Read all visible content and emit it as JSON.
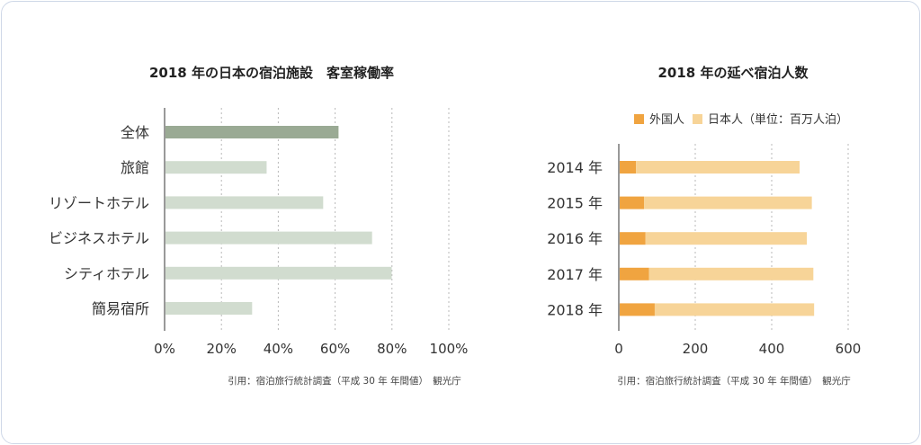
{
  "chart_data": [
    {
      "type": "bar",
      "orientation": "horizontal",
      "title": "2018 年の日本の宿泊施設　客室稼働率",
      "categories": [
        "全体",
        "旅館",
        "リゾートホテル",
        "ビジネスホテル",
        "シティホテル",
        "簡易宿所"
      ],
      "values": [
        61.2,
        35.9,
        55.8,
        73.0,
        79.9,
        30.8
      ],
      "highlight_index": 0,
      "xlim": [
        0,
        100
      ],
      "xticks": [
        "0%",
        "20%",
        "40%",
        "60%",
        "80%",
        "100%"
      ],
      "xtick_values": [
        0,
        20,
        40,
        60,
        80,
        100
      ],
      "grid": true,
      "colors": {
        "highlight": "#9aaa94",
        "bar": "#d1dccf",
        "grid": "#b8b8b8"
      },
      "source": "引用：宿泊旅行統計調査（平成 30 年 年間値）　観光庁"
    },
    {
      "type": "bar",
      "orientation": "horizontal",
      "stacked": true,
      "title": "2018 年の延べ宿泊人数",
      "categories": [
        "2014 年",
        "2015 年",
        "2016 年",
        "2017 年",
        "2018 年"
      ],
      "series": [
        {
          "name": "外国人",
          "values": [
            45,
            66,
            70,
            79,
            94
          ],
          "color": "#f0a440"
        },
        {
          "name": "日本人（単位：百万人泊）",
          "values": [
            428,
            439,
            422,
            430,
            417
          ],
          "color": "#f7d498"
        }
      ],
      "xlim": [
        0,
        600
      ],
      "xticks": [
        "0",
        "200",
        "400",
        "600"
      ],
      "xtick_values": [
        0,
        200,
        400,
        600
      ],
      "legend": "top",
      "grid": true,
      "source": "引用：宿泊旅行統計調査（平成 30 年 年間値）　観光庁"
    }
  ]
}
